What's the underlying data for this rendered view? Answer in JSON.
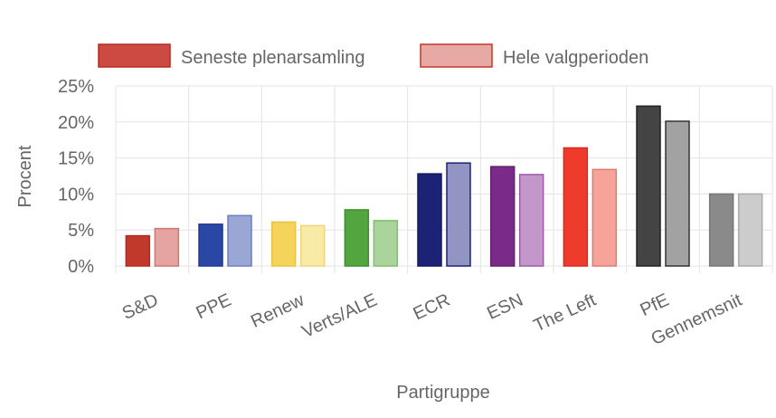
{
  "chart_data": {
    "type": "bar",
    "xlabel": "Partigruppe",
    "ylabel": "Procent",
    "ylim": [
      0,
      25
    ],
    "y_ticks": [
      "0%",
      "5%",
      "10%",
      "15%",
      "20%",
      "25%"
    ],
    "y_tick_values": [
      0,
      5,
      10,
      15,
      20,
      25
    ],
    "grid": true,
    "legend_position": "top",
    "categories": [
      "S&D",
      "PPE",
      "Renew",
      "Verts/ALE",
      "ECR",
      "ESN",
      "The Left",
      "PfE",
      "Gennemsnit"
    ],
    "series": [
      {
        "name": "Seneste plenarsamling",
        "values": [
          4.2,
          5.8,
          6.1,
          7.8,
          12.8,
          13.8,
          16.4,
          22.2,
          10.0
        ]
      },
      {
        "name": "Hele valgperioden",
        "values": [
          5.2,
          7.0,
          5.6,
          6.3,
          14.3,
          12.7,
          13.4,
          20.1,
          10.0
        ]
      }
    ],
    "colors": {
      "latest": [
        "#c0392b",
        "#2a47a6",
        "#f5d45c",
        "#53a53f",
        "#1c2275",
        "#7a2a88",
        "#ef3b2c",
        "#444444",
        "#8a8a8a"
      ],
      "latest_stroke": [
        "#b52a20",
        "#203a90",
        "#e8c440",
        "#3f8e2c",
        "#141960",
        "#66206f",
        "#d92a1f",
        "#222222",
        "#777777"
      ],
      "period": [
        "#e6a4a0",
        "#9aa7d5",
        "#faeaa8",
        "#aad49b",
        "#9295c2",
        "#c497cb",
        "#f6a49a",
        "#a2a2a2",
        "#cccccc"
      ],
      "period_stroke": [
        "#d0776f",
        "#6b7fc2",
        "#f0d47a",
        "#7fbf6a",
        "#1c2275",
        "#9c5aa8",
        "#e07b6f",
        "#333333",
        "#aaaaaa"
      ],
      "legend_latest": "#cc4a42",
      "legend_latest_stroke": "#b52a20",
      "legend_period": "#e8a9a5",
      "legend_period_stroke": "#c0392b"
    }
  }
}
